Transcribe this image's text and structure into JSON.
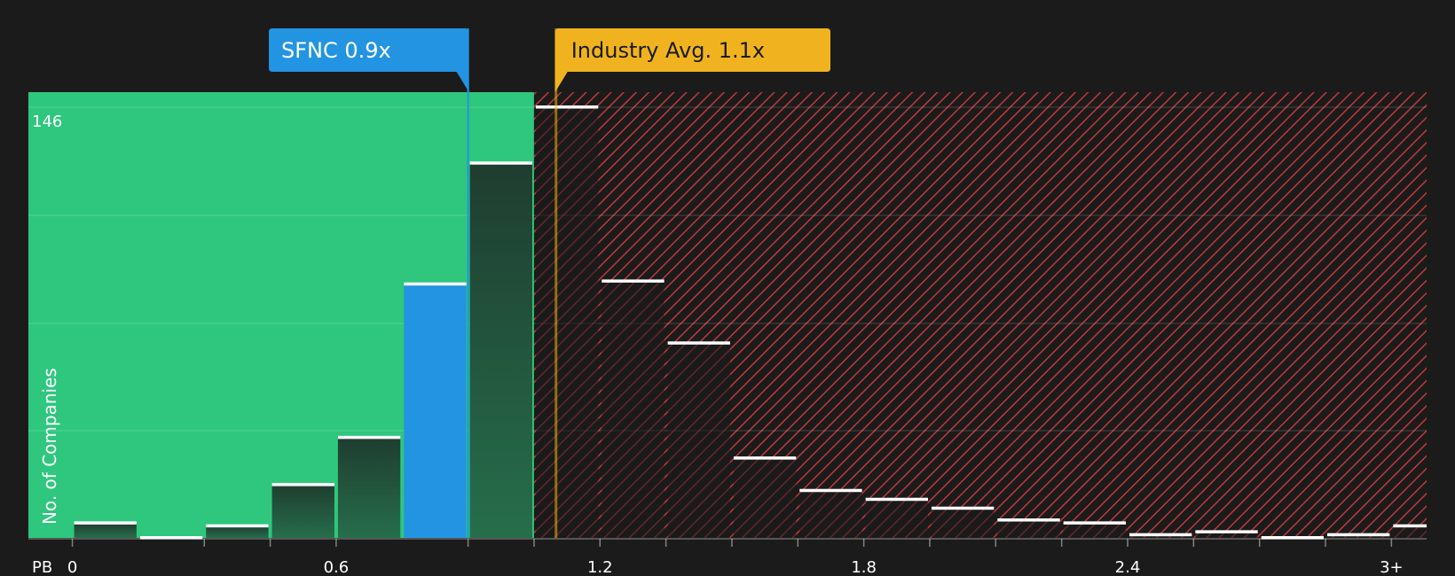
{
  "chart_data": {
    "type": "bar",
    "xlabel": "PB",
    "ylabel": "No. of Companies",
    "y_max_label": "146",
    "ylim": [
      0,
      150
    ],
    "xlim": [
      -0.1,
      3.08
    ],
    "bin_width": 0.15,
    "x_ticks": [
      {
        "value": 0,
        "label": "0"
      },
      {
        "value": 0.6,
        "label": "0.6"
      },
      {
        "value": 1.2,
        "label": "1.2"
      },
      {
        "value": 1.8,
        "label": "1.8"
      },
      {
        "value": 2.4,
        "label": "2.4"
      },
      {
        "value": 3.0,
        "label": "3+"
      }
    ],
    "minor_ticks": [
      0.3,
      0.45,
      0.9,
      1.05,
      1.35,
      1.5,
      1.65,
      1.95,
      2.1,
      2.25,
      2.55,
      2.7,
      2.85
    ],
    "bins": [
      {
        "start": 0.0,
        "value": 5
      },
      {
        "start": 0.15,
        "value": 0
      },
      {
        "start": 0.3,
        "value": 4
      },
      {
        "start": 0.45,
        "value": 18
      },
      {
        "start": 0.6,
        "value": 34
      },
      {
        "start": 0.75,
        "value": 86,
        "highlight": true
      },
      {
        "start": 0.9,
        "value": 127
      },
      {
        "start": 1.05,
        "value": 146
      },
      {
        "start": 1.2,
        "value": 87
      },
      {
        "start": 1.35,
        "value": 66
      },
      {
        "start": 1.5,
        "value": 27
      },
      {
        "start": 1.65,
        "value": 16
      },
      {
        "start": 1.8,
        "value": 13
      },
      {
        "start": 1.95,
        "value": 10
      },
      {
        "start": 2.1,
        "value": 6
      },
      {
        "start": 2.25,
        "value": 5
      },
      {
        "start": 2.4,
        "value": 1
      },
      {
        "start": 2.55,
        "value": 2
      },
      {
        "start": 2.7,
        "value": 0
      },
      {
        "start": 2.85,
        "value": 1
      },
      {
        "start": 3.0,
        "value": 4
      }
    ],
    "company": {
      "label": "SFNC 0.9x",
      "value": 0.9
    },
    "industry_avg": {
      "label": "Industry Avg. 1.1x",
      "value": 1.1
    },
    "undervalued_until": 1.05
  },
  "colors": {
    "background": "#1b1b1b",
    "undervalued_zone": "#2ec77d",
    "overvalued_stripe": "#c0393b",
    "highlight_bar": "#2394e1",
    "bar_top": "#1f3d30",
    "bar_bottom": "#266e4b",
    "industry": "#f0b31f",
    "cap_line": "#ffffff",
    "axis_text": "#ffffff"
  }
}
